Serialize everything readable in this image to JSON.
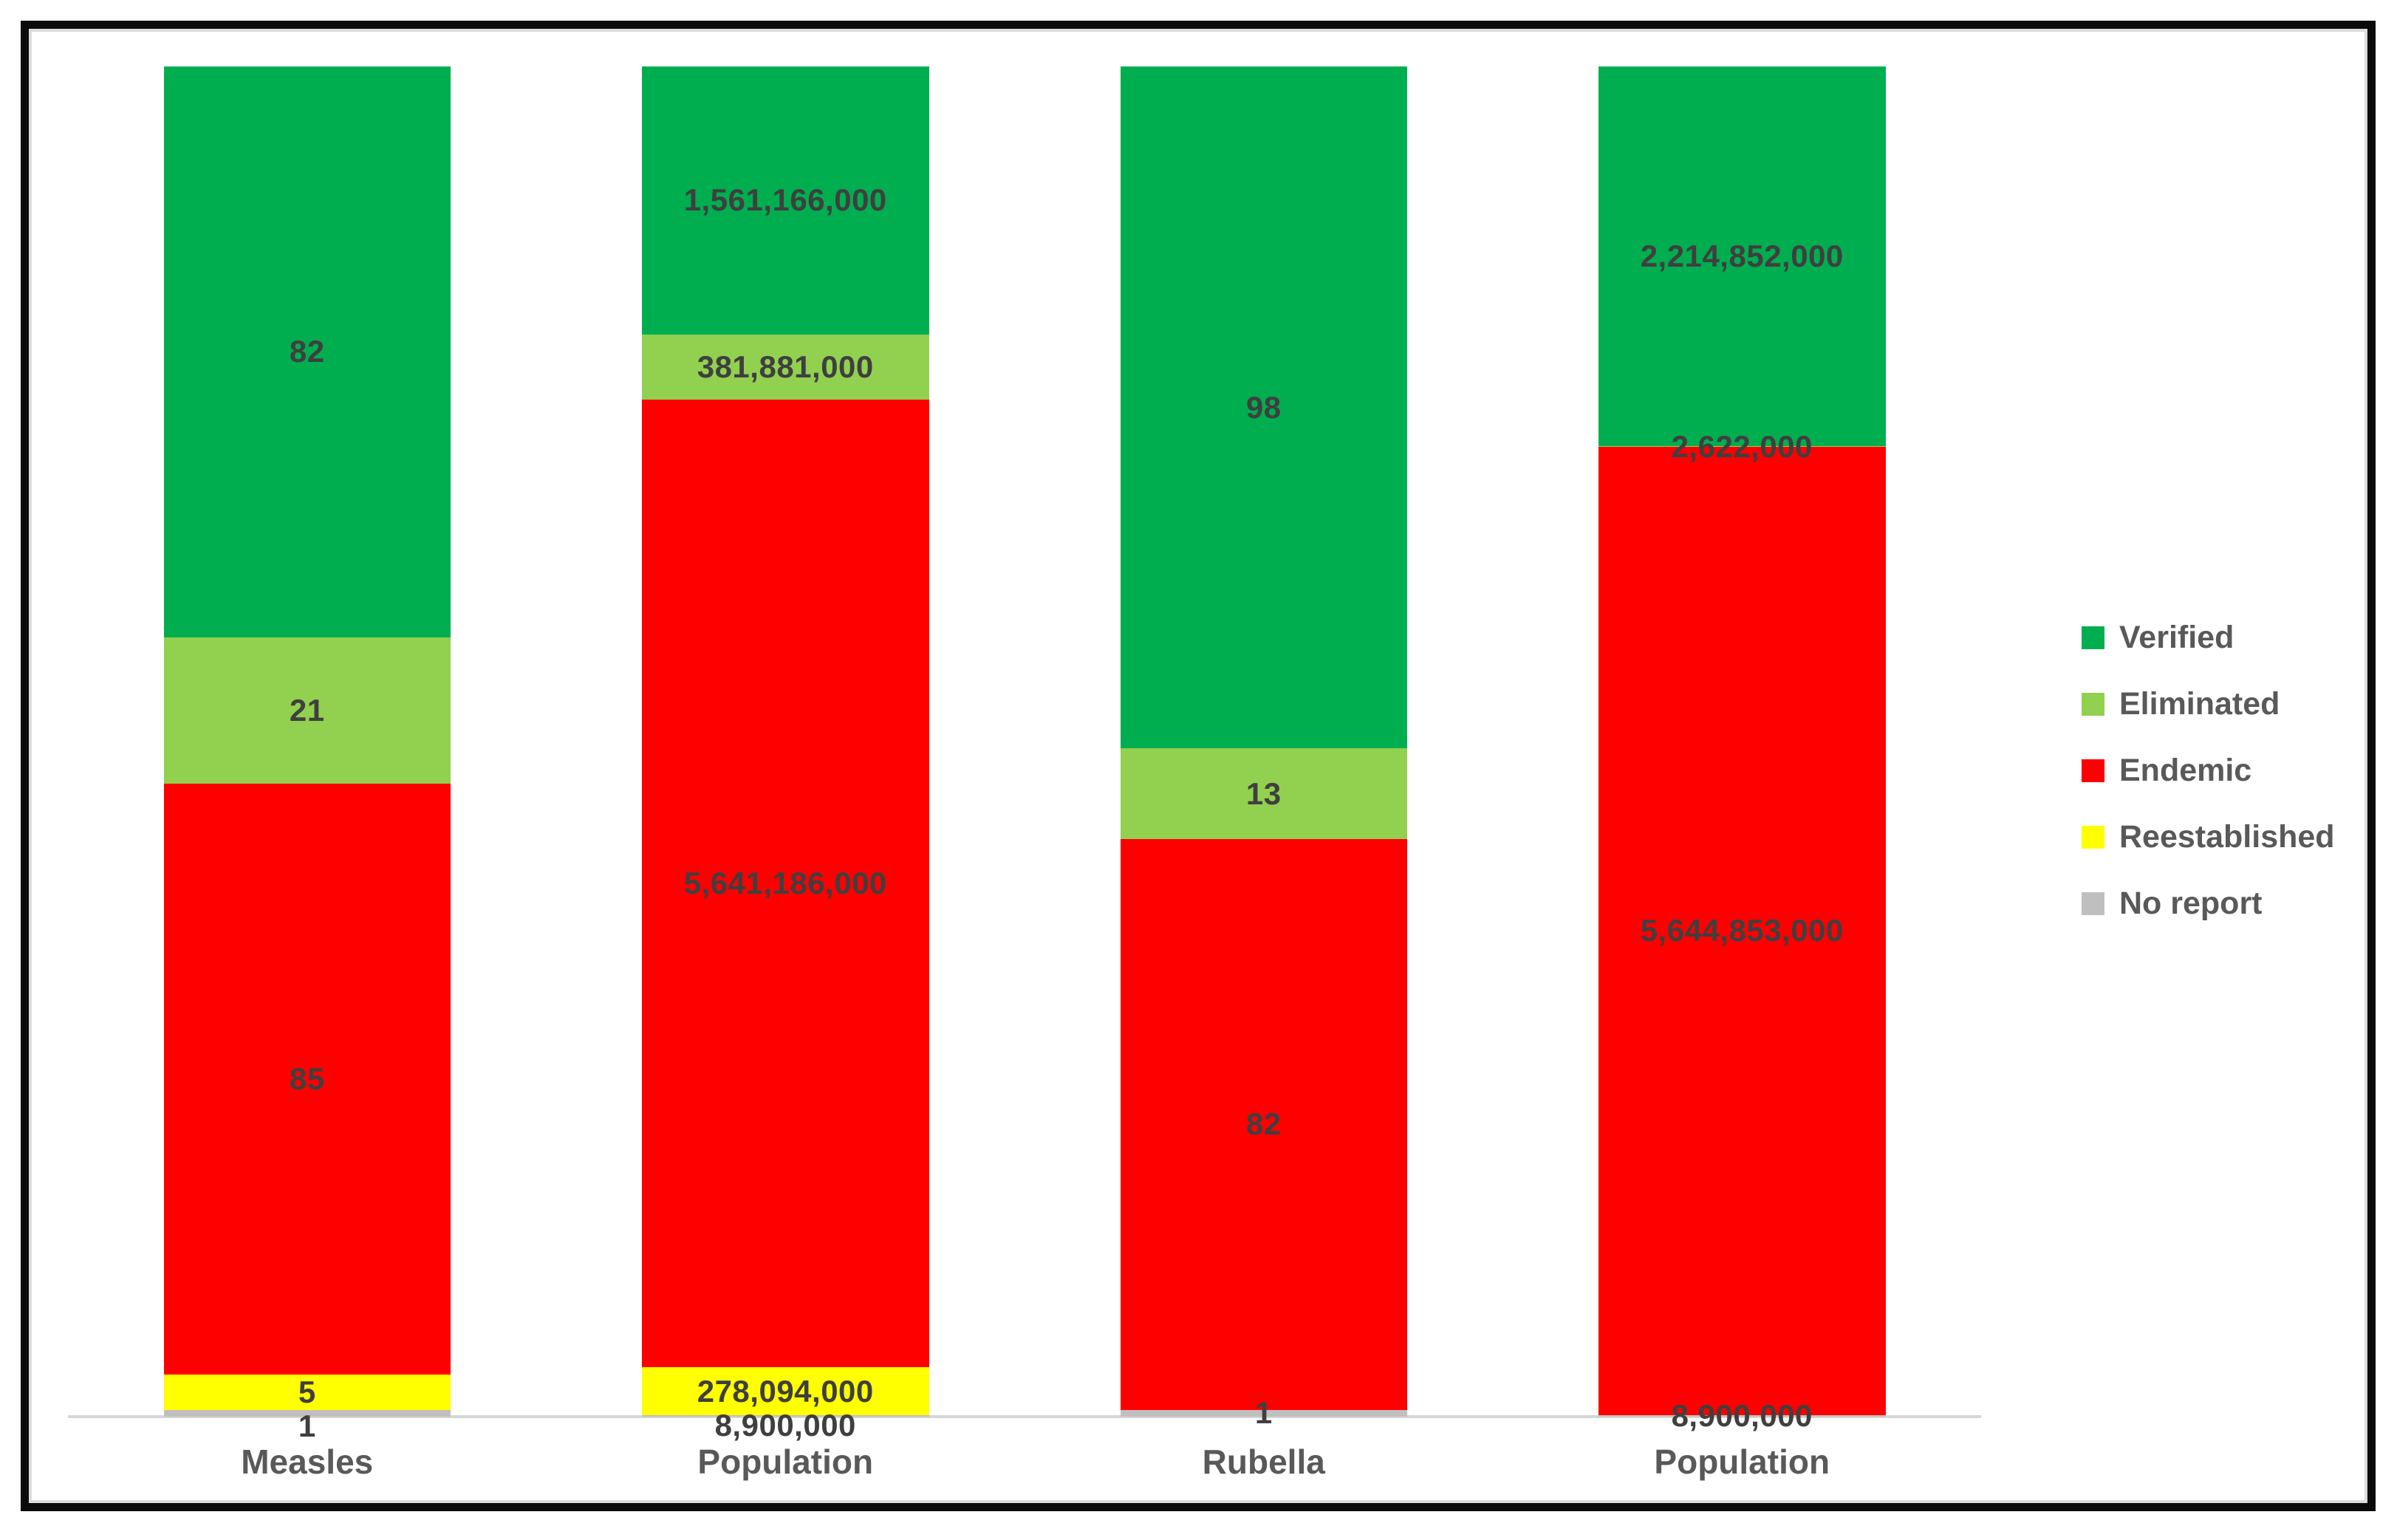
{
  "chart_data": {
    "type": "bar",
    "stacked": true,
    "normalized": "percent-of-column-total",
    "title": "",
    "xlabel": "",
    "ylabel": "",
    "grid": false,
    "legend_position": "right",
    "axis_line_color": "#d6d6d6",
    "data_label_color": "#3f3f3f",
    "axis_text_color": "#595959",
    "categories": [
      "Measles",
      "Population",
      "Rubella",
      "Population"
    ],
    "series": [
      {
        "name": "Verified",
        "color": "#00ae50",
        "values": [
          82,
          1561166000,
          98,
          2214852000
        ],
        "labels": [
          "82",
          "1,561,166,000",
          "98",
          "2,214,852,000"
        ]
      },
      {
        "name": "Eliminated",
        "color": "#92d050",
        "values": [
          21,
          381881000,
          13,
          2622000
        ],
        "labels": [
          "21",
          "381,881,000",
          "13",
          "2,622,000"
        ]
      },
      {
        "name": "Endemic",
        "color": "#ff0000",
        "values": [
          85,
          5641186000,
          82,
          5644853000
        ],
        "labels": [
          "85",
          "5,641,186,000",
          "82",
          "5,644,853,000"
        ]
      },
      {
        "name": "Reestablished",
        "color": "#ffff00",
        "values": [
          5,
          278094000,
          0,
          0
        ],
        "labels": [
          "5",
          "278,094,000",
          "",
          ""
        ]
      },
      {
        "name": "No report",
        "color": "#bfbfbf",
        "values": [
          1,
          8900000,
          1,
          8900000
        ],
        "labels": [
          "1",
          "8,900,000",
          "1",
          "8,900,000"
        ]
      }
    ]
  }
}
